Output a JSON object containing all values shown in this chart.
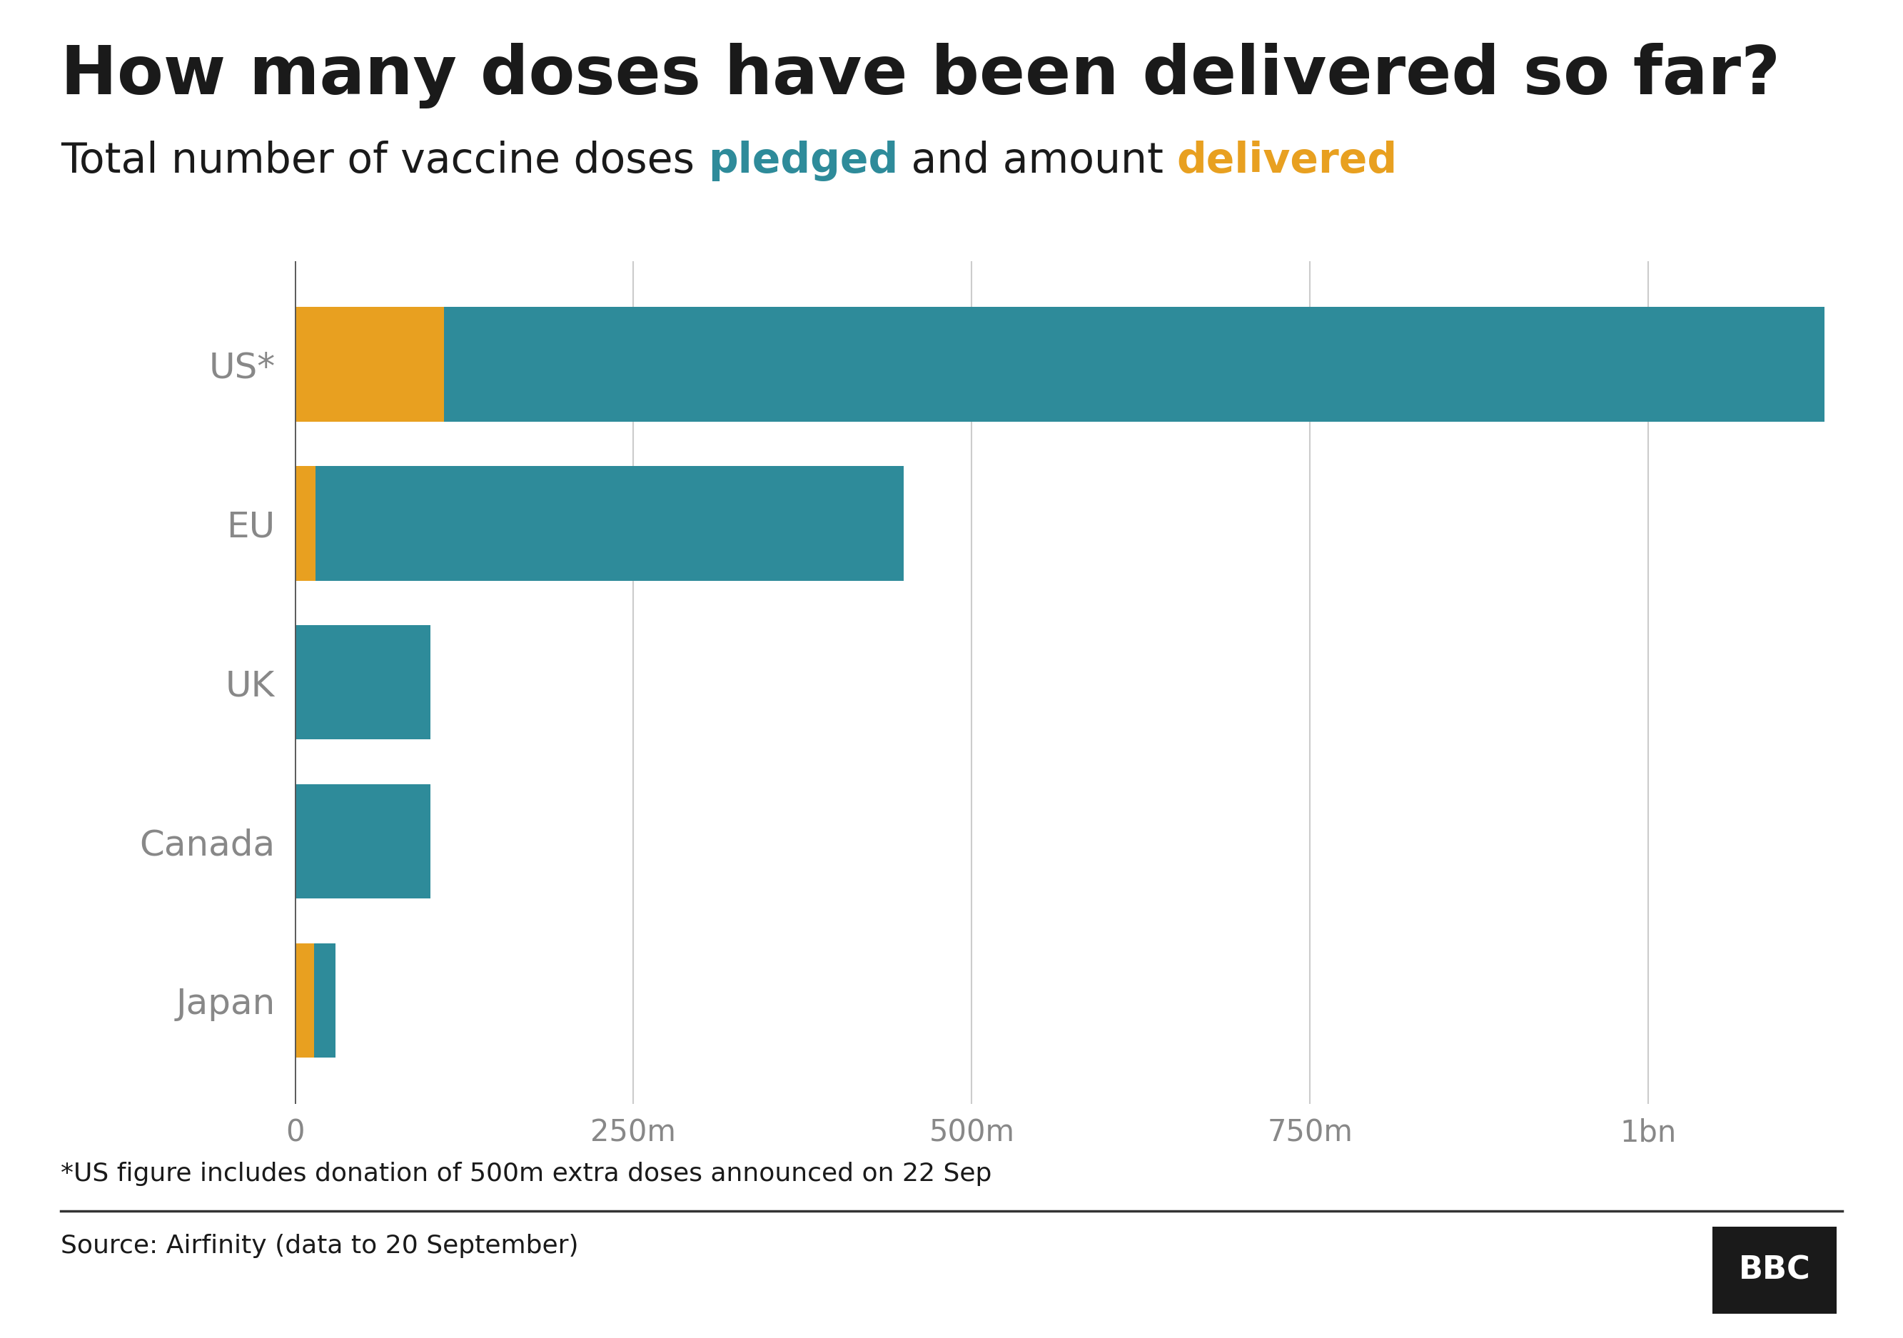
{
  "title": "How many doses have been delivered so far?",
  "subtitle_plain": "Total number of vaccine doses ",
  "subtitle_pledged": "pledged",
  "subtitle_middle": " and amount ",
  "subtitle_delivered": "delivered",
  "categories": [
    "US*",
    "EU",
    "UK",
    "Canada",
    "Japan"
  ],
  "pledged": [
    1130000000,
    450000000,
    100000000,
    100000000,
    30000000
  ],
  "delivered": [
    110000000,
    15000000,
    0,
    0,
    14000000
  ],
  "pledged_color": "#2e8b9a",
  "delivered_color": "#e8a020",
  "background_color": "#ffffff",
  "title_color": "#1a1a1a",
  "subtitle_color": "#1a1a1a",
  "pledged_label_color": "#2e8b9a",
  "delivered_label_color": "#e8a020",
  "grid_color": "#cccccc",
  "label_color": "#888888",
  "tick_labels": [
    "0",
    "250m",
    "500m",
    "750m",
    "1bn"
  ],
  "tick_values": [
    0,
    250000000,
    500000000,
    750000000,
    1000000000
  ],
  "xlim_max": 1160000000,
  "bar_height": 0.72,
  "footnote": "*US figure includes donation of 500m extra doses announced on 22 Sep",
  "source": "Source: Airfinity (data to 20 September)",
  "bbc_letters": [
    "B",
    "B",
    "C"
  ],
  "title_fontsize": 68,
  "subtitle_fontsize": 42,
  "tick_fontsize": 30,
  "ylabel_fontsize": 36,
  "footnote_fontsize": 26,
  "source_fontsize": 26
}
